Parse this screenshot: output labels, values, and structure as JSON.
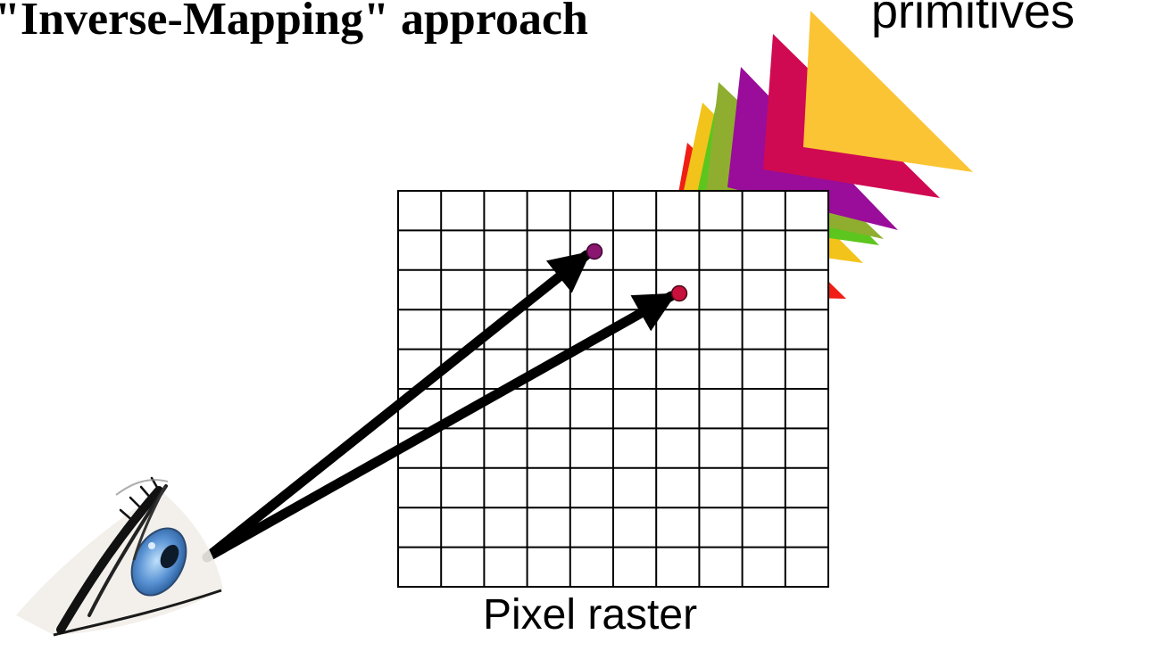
{
  "title": "\"Inverse-Mapping\" approach",
  "primitives_label": "primitives",
  "raster_label": "Pixel raster",
  "grid": {
    "columns": 10,
    "rows": 10
  },
  "colors": {
    "grid_line": "#000000",
    "arrow": "#000000",
    "dot_purple": "#8a1670",
    "dot_crimson": "#c8103c",
    "primitive_red": "#f01e14",
    "primitive_yellow": "#f2c31a",
    "primitive_green": "#5cc61e",
    "primitive_olive": "#8fae30",
    "primitive_purple": "#9a0c9a",
    "primitive_crimson": "#cf0a52",
    "primitive_gold": "#fbc434",
    "eye_iris": "#5a93d4"
  },
  "icons": {
    "eye": "eye-icon"
  }
}
